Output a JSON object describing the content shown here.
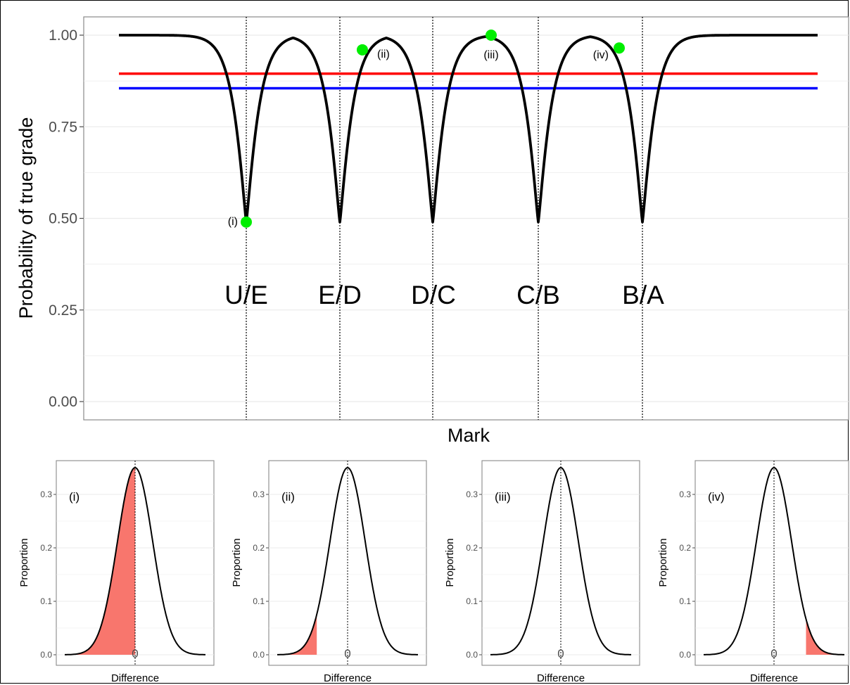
{
  "chart_data": [
    {
      "type": "line",
      "xlabel": "Mark",
      "ylabel": "Probability of true grade",
      "ylim": [
        0,
        1
      ],
      "yticks": [
        "0.00",
        "0.25",
        "0.50",
        "0.75",
        "1.00"
      ],
      "xticks_shown": false,
      "grid": true,
      "boundaries": [
        "U/E",
        "E/D",
        "D/C",
        "C/B",
        "B/A"
      ],
      "series": [
        {
          "color": "#000000",
          "note": "probability curve dips to 0.49 at each grade boundary, 1.00 between boundaries"
        },
        {
          "color": "#ff0000",
          "y": 0.895
        },
        {
          "color": "#0000ff",
          "y": 0.855
        }
      ],
      "highlighted_points": [
        {
          "label": "(i)",
          "y": 0.49,
          "color": "#00ee00"
        },
        {
          "label": "(ii)",
          "y": 0.96,
          "color": "#00ee00"
        },
        {
          "label": "(iii)",
          "y": 1.0,
          "color": "#00ee00"
        },
        {
          "label": "(iv)",
          "y": 0.965,
          "color": "#00ee00"
        }
      ]
    },
    {
      "type": "area",
      "label": "(i)",
      "xlabel": "Difference",
      "ylabel": "Proportion",
      "xtick": "0",
      "yticks": [
        "0.0",
        "0.1",
        "0.2",
        "0.3"
      ],
      "peak": 0.35,
      "shaded_tail": "left",
      "shaded_fraction": 0.5,
      "shade_color": "#f8766d"
    },
    {
      "type": "area",
      "label": "(ii)",
      "xlabel": "Difference",
      "ylabel": "Proportion",
      "xtick": "0",
      "yticks": [
        "0.0",
        "0.1",
        "0.2",
        "0.3"
      ],
      "peak": 0.35,
      "shaded_tail": "left",
      "shaded_fraction": 0.04,
      "shade_color": "#f8766d"
    },
    {
      "type": "area",
      "label": "(iii)",
      "xlabel": "Difference",
      "ylabel": "Proportion",
      "xtick": "0",
      "yticks": [
        "0.0",
        "0.1",
        "0.2",
        "0.3"
      ],
      "peak": 0.35,
      "shaded_tail": "none",
      "shaded_fraction": 0,
      "shade_color": "#f8766d"
    },
    {
      "type": "area",
      "label": "(iv)",
      "xlabel": "Difference",
      "ylabel": "Proportion",
      "xtick": "0",
      "yticks": [
        "0.0",
        "0.1",
        "0.2",
        "0.3"
      ],
      "peak": 0.35,
      "shaded_tail": "right",
      "shaded_fraction": 0.035,
      "shade_color": "#f8766d"
    }
  ]
}
